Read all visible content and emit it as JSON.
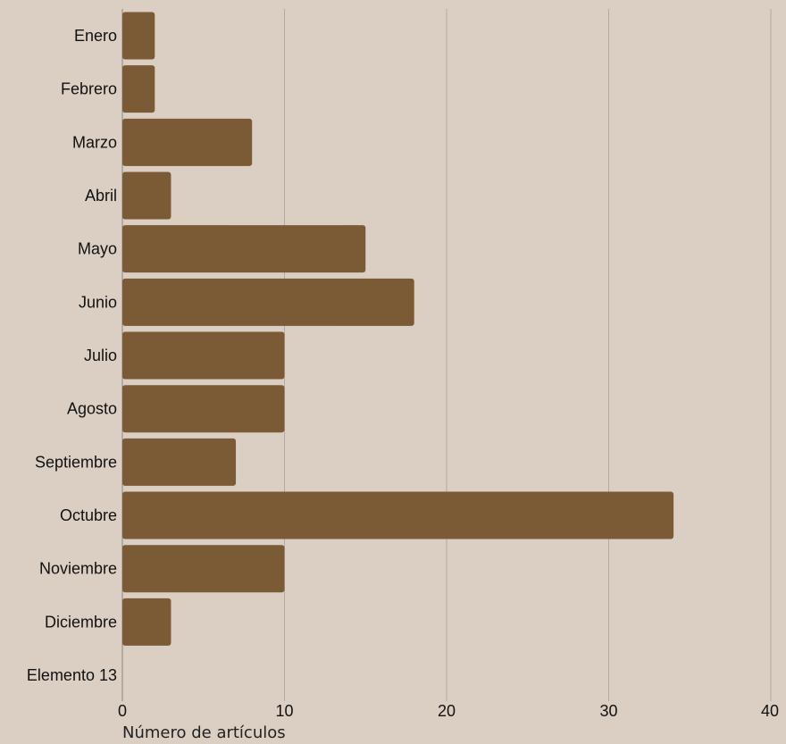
{
  "chart_data": {
    "type": "bar",
    "orientation": "horizontal",
    "categories": [
      "Enero",
      "Febrero",
      "Marzo",
      "Abril",
      "Mayo",
      "Junio",
      "Julio",
      "Agosto",
      "Septiembre",
      "Octubre",
      "Noviembre",
      "Diciembre",
      "Elemento 13"
    ],
    "values": [
      2,
      2,
      8,
      3,
      15,
      18,
      10,
      10,
      7,
      34,
      10,
      3,
      0
    ],
    "xlabel": "Número de artículos",
    "ylabel": "",
    "xlim": [
      0,
      40
    ],
    "xticks": [
      0,
      10,
      20,
      30,
      40
    ],
    "grid": "vertical",
    "legend": "none",
    "colors": {
      "background": "#dbcfc3",
      "bar": "#7b5a36",
      "grid": "#b3a99f"
    }
  }
}
